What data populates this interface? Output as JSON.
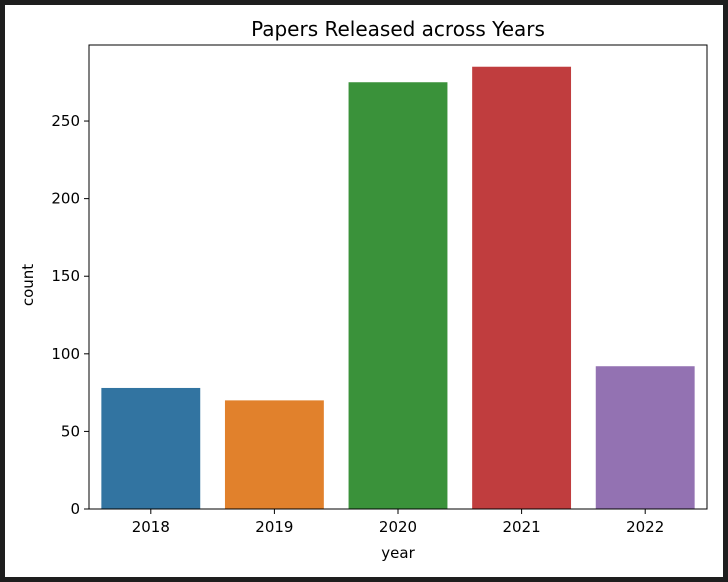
{
  "chart_data": {
    "type": "bar",
    "title": "Papers Released across Years",
    "xlabel": "year",
    "ylabel": "count",
    "categories": [
      "2018",
      "2019",
      "2020",
      "2021",
      "2022"
    ],
    "values": [
      78,
      70,
      275,
      285,
      92
    ],
    "colors": [
      "#3274a1",
      "#e1812c",
      "#3a923a",
      "#c03d3e",
      "#9372b2"
    ],
    "ylim": [
      0,
      299
    ],
    "yticks": [
      0,
      50,
      100,
      150,
      200,
      250
    ],
    "grid": false,
    "legend": "none"
  }
}
